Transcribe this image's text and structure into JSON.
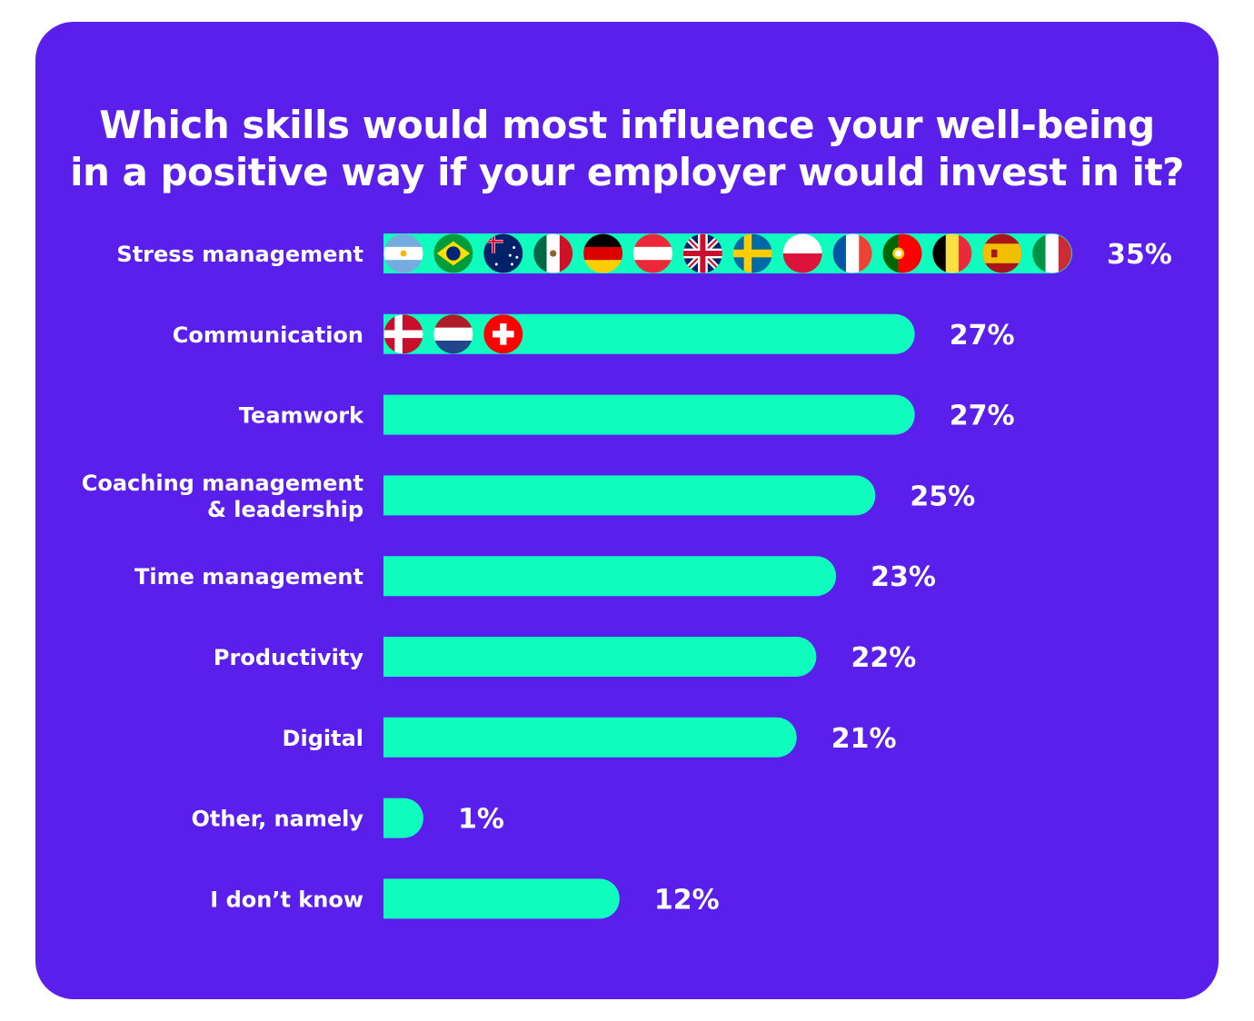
{
  "colors": {
    "background": "#5a1feb",
    "bar": "#0ffcbe",
    "text": "#ffffff"
  },
  "chart_data": {
    "type": "bar",
    "orientation": "horizontal",
    "title": "Which skills would most influence your well-being\nin a positive way if your employer would invest in it?",
    "categories": [
      "Stress management",
      "Communication",
      "Teamwork",
      "Coaching management\n& leadership",
      "Time management",
      "Productivity",
      "Digital",
      "Other, namely",
      "I don’t know"
    ],
    "values": [
      35,
      27,
      27,
      25,
      23,
      22,
      21,
      1,
      12
    ],
    "value_labels": [
      "35%",
      "27%",
      "27%",
      "25%",
      "23%",
      "22%",
      "21%",
      "1%",
      "12%"
    ],
    "unit": "%",
    "xlim": [
      0,
      35
    ],
    "grid": false,
    "legend": "none",
    "bar_markers": [
      {
        "category": "Stress management",
        "icons": [
          "flag-argentina-icon",
          "flag-brazil-icon",
          "flag-australia-icon",
          "flag-mexico-icon",
          "flag-germany-icon",
          "flag-austria-icon",
          "flag-uk-icon",
          "flag-sweden-icon",
          "flag-poland-icon",
          "flag-france-icon",
          "flag-portugal-icon",
          "flag-belgium-icon",
          "flag-spain-icon",
          "flag-italy-icon"
        ]
      },
      {
        "category": "Communication",
        "icons": [
          "flag-denmark-icon",
          "flag-netherlands-icon",
          "flag-switzerland-icon"
        ]
      }
    ]
  }
}
